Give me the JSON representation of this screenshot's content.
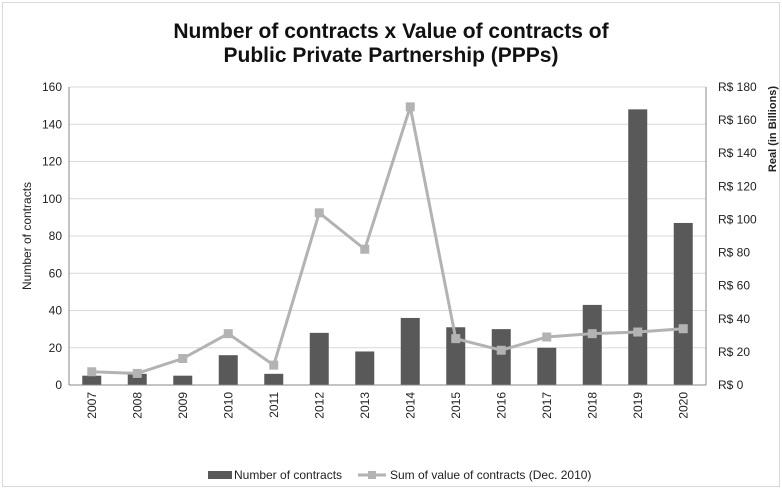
{
  "chart_data": {
    "type": "bar+line",
    "title_line1": "Number of contracts x Value of contracts of",
    "title_line2": "Public Private Partnership (PPPs)",
    "categories": [
      "2007",
      "2008",
      "2009",
      "2010",
      "2011",
      "2012",
      "2013",
      "2014",
      "2015",
      "2016",
      "2017",
      "2018",
      "2019",
      "2020"
    ],
    "series": [
      {
        "name": "Number of contracts",
        "type": "bar",
        "axis": "left",
        "color": "#595959",
        "values": [
          5,
          6,
          5,
          16,
          6,
          28,
          18,
          36,
          31,
          30,
          20,
          43,
          148,
          87
        ]
      },
      {
        "name": "Sum of value of contracts (Dec. 2010)",
        "type": "line",
        "axis": "right",
        "color": "#b3b3b3",
        "values": [
          8,
          7,
          16,
          31,
          12,
          104,
          82,
          168,
          28,
          21,
          29,
          31,
          32,
          34
        ]
      }
    ],
    "ylabel_left": "Number of contracts",
    "ylabel_right": "Real (in Billions)",
    "ylim_left": [
      0,
      160
    ],
    "ylim_right": [
      0,
      180
    ],
    "yticks_left": [
      "0",
      "20",
      "40",
      "60",
      "80",
      "100",
      "120",
      "140",
      "160"
    ],
    "yticks_right": [
      "R$ 0",
      "R$ 20",
      "R$ 40",
      "R$ 60",
      "R$ 80",
      "R$ 100",
      "R$ 120",
      "R$ 140",
      "R$ 160",
      "R$ 180"
    ],
    "legend_position": "bottom",
    "grid": true
  }
}
